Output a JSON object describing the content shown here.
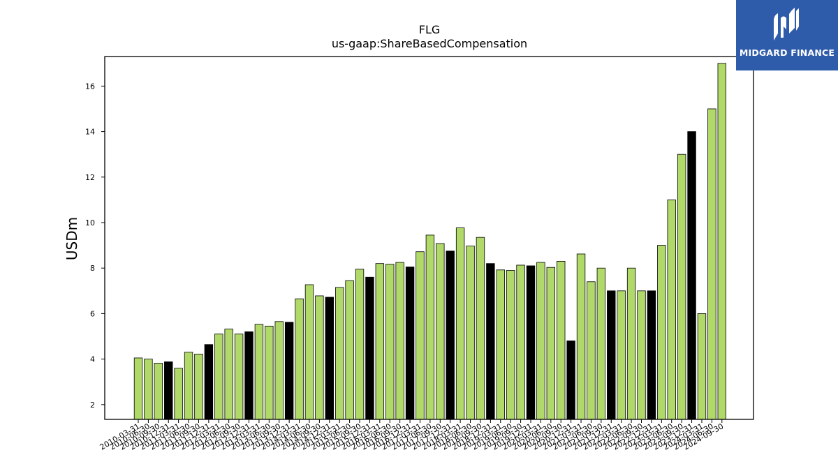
{
  "logo": {
    "text": "MIDGARD FINANCE"
  },
  "colors": {
    "bar": "#b0d96a",
    "bar_q4": "#000000",
    "edge": "#000000",
    "logo_bg": "#2f5bab"
  },
  "chart_data": {
    "type": "bar",
    "title": "FLG",
    "subtitle": "us-gaap:ShareBasedCompensation",
    "ylabel": "USDm",
    "xlabel": "",
    "ylim": [
      1.35,
      17.3
    ],
    "yticks": [
      2,
      4,
      6,
      8,
      10,
      12,
      14,
      16
    ],
    "grid": false,
    "categories": [
      "2010-03-31",
      "2010-06-30",
      "2010-09-30",
      "2010-12-31",
      "2011-03-31",
      "2011-06-30",
      "2011-09-30",
      "2011-12-31",
      "2012-03-31",
      "2012-06-30",
      "2012-09-30",
      "2012-12-31",
      "2013-03-31",
      "2013-06-30",
      "2013-09-30",
      "2013-12-31",
      "2014-03-31",
      "2014-06-30",
      "2014-09-30",
      "2014-12-31",
      "2015-03-31",
      "2015-06-30",
      "2015-09-30",
      "2015-12-31",
      "2016-03-31",
      "2016-06-30",
      "2016-09-30",
      "2016-12-31",
      "2017-03-31",
      "2017-06-30",
      "2017-09-30",
      "2017-12-31",
      "2018-03-31",
      "2018-06-30",
      "2018-09-30",
      "2018-12-31",
      "2019-03-31",
      "2019-06-30",
      "2019-09-30",
      "2019-12-31",
      "2020-03-31",
      "2020-06-30",
      "2020-09-30",
      "2020-12-31",
      "2021-03-31",
      "2021-06-30",
      "2021-09-30",
      "2021-12-31",
      "2022-03-31",
      "2022-06-30",
      "2022-09-30",
      "2022-12-31",
      "2023-03-31",
      "2023-06-30",
      "2023-09-30",
      "2023-12-31",
      "2024-03-31",
      "2024-06-30",
      "2024-09-30"
    ],
    "values": [
      4.05,
      4.0,
      3.82,
      3.88,
      3.6,
      4.3,
      4.22,
      4.64,
      5.1,
      5.32,
      5.1,
      5.2,
      5.53,
      5.45,
      5.65,
      5.62,
      6.65,
      7.27,
      6.78,
      6.72,
      7.15,
      7.45,
      7.95,
      7.6,
      8.2,
      8.17,
      8.25,
      8.05,
      8.72,
      9.45,
      9.08,
      8.75,
      9.77,
      8.97,
      9.35,
      8.2,
      7.92,
      7.9,
      8.13,
      8.1,
      8.25,
      8.03,
      8.3,
      4.8,
      8.62,
      7.4,
      8.0,
      7.0,
      7.0,
      8.0,
      7.0,
      7.0,
      9.0,
      11.0,
      13.0,
      14.0,
      6.0,
      15.0,
      17.0
    ]
  }
}
